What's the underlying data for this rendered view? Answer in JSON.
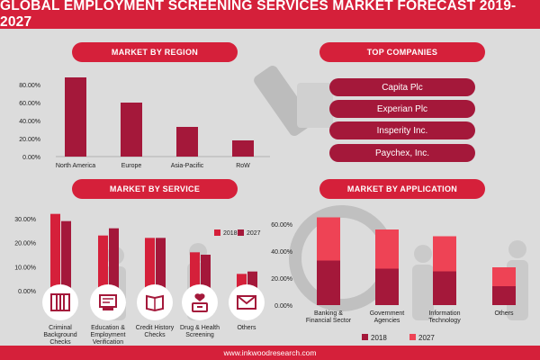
{
  "header": {
    "title": "GLOBAL EMPLOYMENT SCREENING SERVICES MARKET FORECAST 2019-2027"
  },
  "sections": {
    "region": "MARKET BY REGION",
    "companies": "TOP COMPANIES",
    "service": "MARKET BY SERVICE",
    "application": "MARKET BY APPLICATION"
  },
  "companies": [
    "Capita Plc",
    "Experian Plc",
    "Insperity Inc.",
    "Paychex, Inc."
  ],
  "footer": {
    "url": "www.inkwoodresearch.com"
  },
  "colors": {
    "red": "#d5203a",
    "dark": "#a4183a",
    "light_red": "#ee4355",
    "bg": "#dcdcdc"
  },
  "chart_data": [
    {
      "type": "bar",
      "title": "MARKET BY REGION",
      "categories": [
        "North America",
        "Europe",
        "Asia-Pacific",
        "RoW"
      ],
      "values": [
        88,
        60,
        33,
        18
      ],
      "ylim": [
        0,
        90
      ],
      "yticks": [
        "0.00%",
        "20.00%",
        "40.00%",
        "60.00%",
        "80.00%"
      ]
    },
    {
      "type": "bar",
      "title": "MARKET BY SERVICE",
      "categories": [
        "Criminal Background Checks",
        "Education & Employment Verification",
        "Credit History Checks",
        "Drug & Health Screening",
        "Others"
      ],
      "series": [
        {
          "name": "2018",
          "values": [
            32,
            23,
            22,
            16,
            7
          ]
        },
        {
          "name": "2027",
          "values": [
            29,
            26,
            22,
            15,
            8
          ]
        }
      ],
      "ylim": [
        0,
        30
      ],
      "yticks": [
        "0.00%",
        "10.00%",
        "20.00%",
        "30.00%"
      ],
      "icons": [
        "prison-bars-icon",
        "diploma-icon",
        "ledger-icon",
        "drug-kit-icon",
        "envelope-icon"
      ]
    },
    {
      "type": "bar",
      "stacked": true,
      "title": "MARKET BY APPLICATION",
      "categories": [
        "Banking & Financial Sector",
        "Government Agencies",
        "Information Technology",
        "Others"
      ],
      "series": [
        {
          "name": "2018",
          "values": [
            33,
            27,
            25,
            14
          ]
        },
        {
          "name": "2027",
          "values": [
            32,
            29,
            26,
            14
          ]
        }
      ],
      "ylim": [
        0,
        60
      ],
      "yticks": [
        "0.00%",
        "20.00%",
        "40.00%",
        "60.00%"
      ]
    }
  ]
}
